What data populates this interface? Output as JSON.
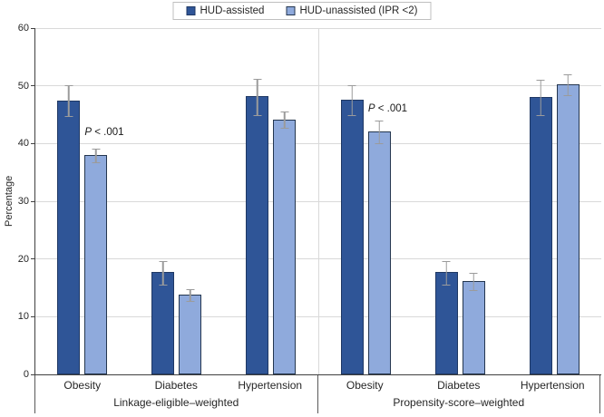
{
  "chart_data": {
    "type": "bar",
    "title": "",
    "ylabel": "Percentage",
    "ylim": [
      0,
      60
    ],
    "yticks": [
      0,
      10,
      20,
      30,
      40,
      50,
      60
    ],
    "grid": "horizontal",
    "legend_position": "top-center",
    "series": [
      {
        "name": "HUD-assisted",
        "fill": "#2F5597",
        "border": "#1F3864"
      },
      {
        "name": "HUD-unassisted (IPR <2)",
        "fill": "#8FAADC",
        "border": "#24364F"
      }
    ],
    "error_bar_color": "#9B9B9B",
    "groups": [
      {
        "label": "Linkage-eligible–weighted",
        "categories": [
          {
            "label": "Obesity",
            "values": [
              47.5,
              38.0
            ],
            "errors": [
              2.8,
              1.3
            ],
            "annotation": "P < .001"
          },
          {
            "label": "Diabetes",
            "values": [
              17.7,
              13.8
            ],
            "errors": [
              2.1,
              1.1
            ]
          },
          {
            "label": "Hypertension",
            "values": [
              48.2,
              44.2
            ],
            "errors": [
              3.2,
              1.5
            ]
          }
        ]
      },
      {
        "label": "Propensity-score–weighted",
        "categories": [
          {
            "label": "Obesity",
            "values": [
              47.6,
              42.1
            ],
            "errors": [
              2.7,
              2.0
            ],
            "annotation": "P < .001"
          },
          {
            "label": "Diabetes",
            "values": [
              17.7,
              16.2
            ],
            "errors": [
              2.1,
              1.6
            ]
          },
          {
            "label": "Hypertension",
            "values": [
              48.1,
              50.3
            ],
            "errors": [
              3.1,
              1.9
            ]
          }
        ]
      }
    ]
  }
}
